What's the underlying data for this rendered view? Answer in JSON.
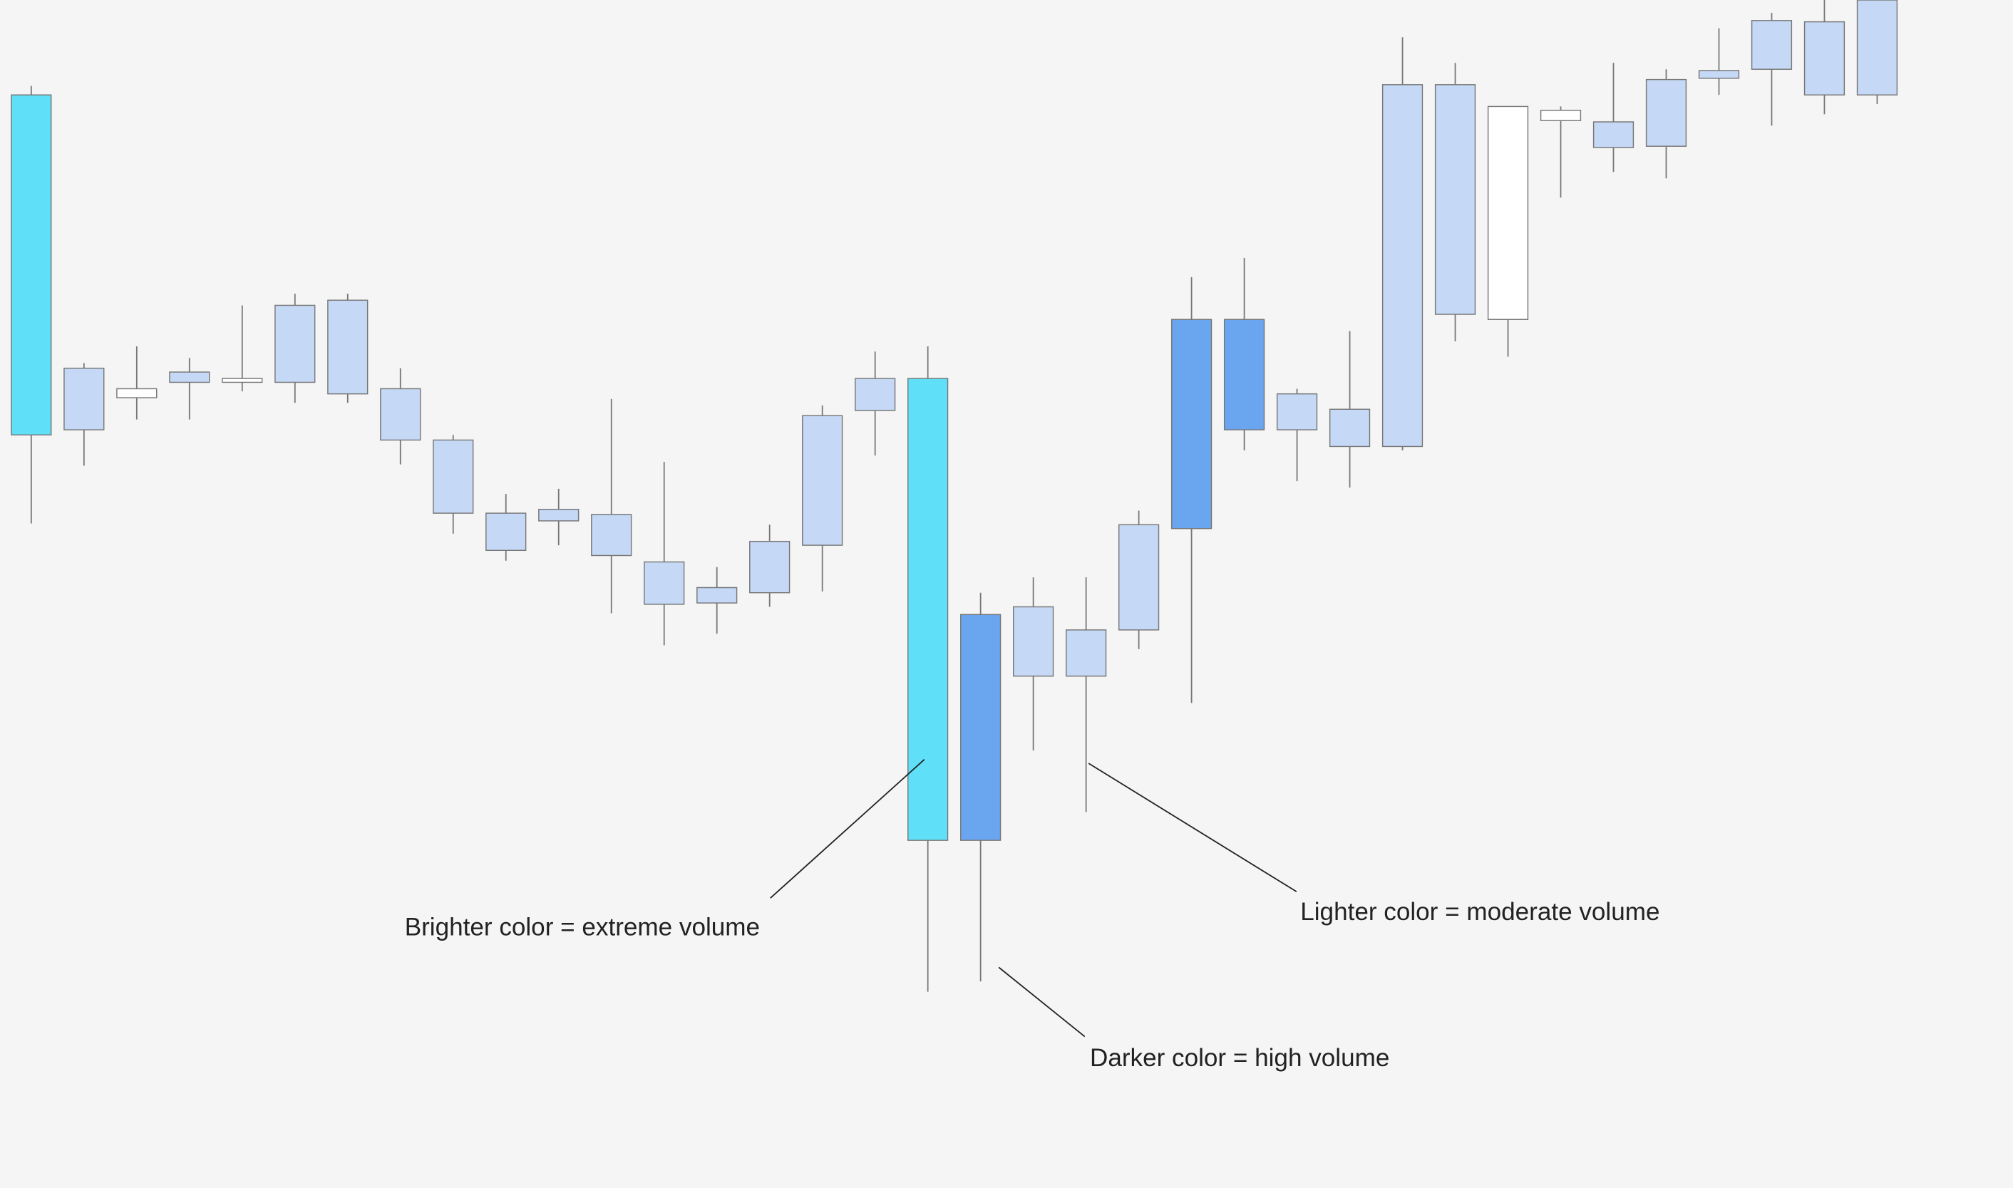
{
  "chart_data": {
    "type": "candlestick",
    "categories": [
      null,
      null,
      null,
      null,
      null,
      null,
      null,
      null,
      null,
      null,
      null,
      null,
      null,
      null,
      null,
      null,
      null,
      null,
      null,
      null,
      null,
      null,
      null,
      null,
      null,
      null,
      null,
      null,
      null,
      null,
      null,
      null,
      null,
      null,
      null,
      null
    ],
    "open": [
      852,
      639,
      623,
      636,
      631,
      688,
      692,
      623,
      583,
      526,
      529,
      525,
      488,
      468,
      504,
      602,
      631,
      631,
      447,
      453,
      435,
      517,
      677,
      677,
      619,
      607,
      860,
      860,
      843,
      840,
      831,
      864,
      871,
      910,
      909,
      926
    ],
    "close": [
      587,
      591,
      616,
      628,
      628,
      628,
      619,
      583,
      526,
      497,
      520,
      493,
      455,
      456,
      464,
      501,
      606,
      271,
      271,
      399,
      399,
      435,
      514,
      591,
      591,
      578,
      578,
      681,
      677,
      832,
      811,
      812,
      865,
      872,
      852,
      852
    ],
    "high": [
      859,
      643,
      656,
      647,
      688,
      697,
      697,
      639,
      587,
      541,
      545,
      615,
      566,
      484,
      517,
      610,
      652,
      656,
      464,
      476,
      476,
      528,
      710,
      725,
      623,
      668,
      897,
      877,
      843,
      843,
      877,
      872,
      904,
      916,
      926,
      926
    ],
    "low": [
      518,
      563,
      599,
      599,
      621,
      612,
      612,
      564,
      510,
      489,
      501,
      448,
      423,
      432,
      453,
      465,
      571,
      153,
      161,
      341,
      293,
      420,
      378,
      575,
      551,
      546,
      575,
      660,
      648,
      772,
      792,
      787,
      852,
      828,
      837,
      845
    ],
    "colors": [
      "#5fe0f8",
      "#c5d8f5",
      "#ffffff",
      "#c5d8f5",
      "#ffffff",
      "#c5d8f5",
      "#c5d8f5",
      "#c5d8f5",
      "#c5d8f5",
      "#c5d8f5",
      "#c5d8f5",
      "#c5d8f5",
      "#c5d8f5",
      "#c5d8f5",
      "#c5d8f5",
      "#c5d8f5",
      "#c5d8f5",
      "#5fe0f8",
      "#6aa5f0",
      "#c5d8f5",
      "#c5d8f5",
      "#c5d8f5",
      "#6aa5f0",
      "#6aa5f0",
      "#c5d8f5",
      "#c5d8f5",
      "#c5d8f5",
      "#c5d8f5",
      "#ffffff",
      "#ffffff",
      "#c5d8f5",
      "#c5d8f5",
      "#c5d8f5",
      "#c5d8f5",
      "#c5d8f5",
      "#c5d8f5"
    ],
    "ylim": [
      0,
      926
    ],
    "annotations": [
      "Brighter color = extreme volume",
      "Darker color = high volume",
      "Lighter color = moderate volume"
    ]
  }
}
